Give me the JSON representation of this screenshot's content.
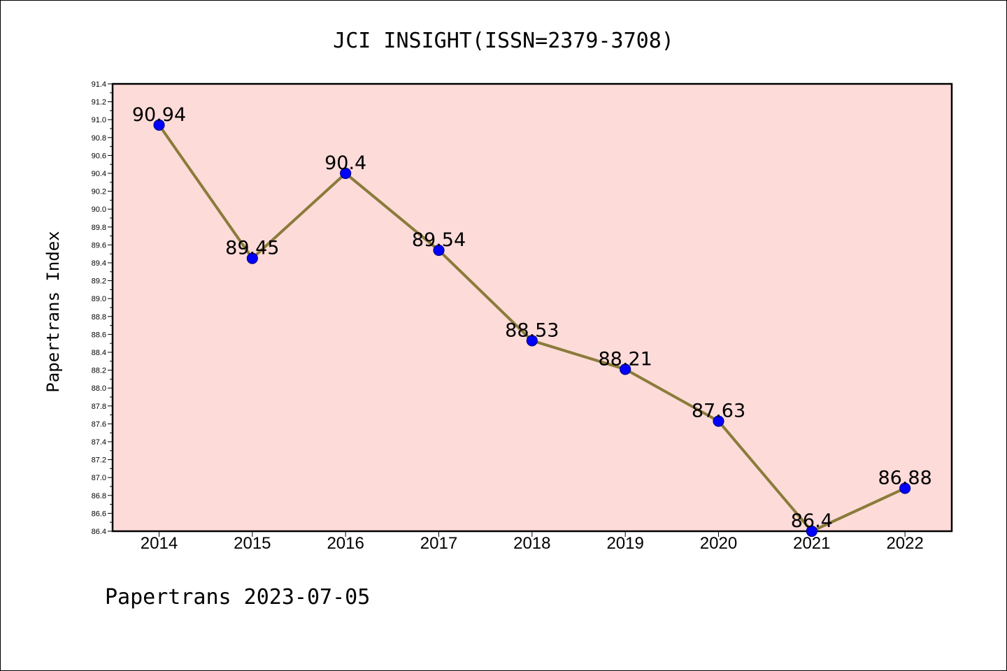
{
  "chart_data": {
    "type": "line",
    "title": "JCI INSIGHT(ISSN=2379-3708)",
    "ylabel": "Papertrans Index",
    "xlabel": "",
    "footer": "Papertrans 2023-07-05",
    "categories": [
      "2014",
      "2015",
      "2016",
      "2017",
      "2018",
      "2019",
      "2020",
      "2021",
      "2022"
    ],
    "series": [
      {
        "values": [
          90.94,
          89.45,
          90.4,
          89.54,
          88.53,
          88.21,
          87.63,
          86.4,
          86.88
        ],
        "labels": [
          "90.94",
          "89.45",
          "90.4",
          "89.54",
          "88.53",
          "88.21",
          "87.63",
          "86.4",
          "86.88"
        ]
      }
    ],
    "ylim": [
      86.4,
      91.4
    ],
    "ytick_step": 0.2,
    "ytick_labels": [
      "86.4",
      "86.6",
      "86.8",
      "87.0",
      "87.2",
      "87.4",
      "87.6",
      "87.8",
      "88.0",
      "88.2",
      "88.4",
      "88.6",
      "88.8",
      "89.0",
      "89.2",
      "89.4",
      "89.6",
      "89.8",
      "90.0",
      "90.2",
      "90.4",
      "90.6",
      "90.8",
      "91.0",
      "91.2",
      "91.4"
    ],
    "grid": false,
    "colors": {
      "plot_background": "#fddbd9",
      "line": "#8b7b3a",
      "marker": "#0000ff",
      "marker_edge": "#00008b"
    }
  }
}
